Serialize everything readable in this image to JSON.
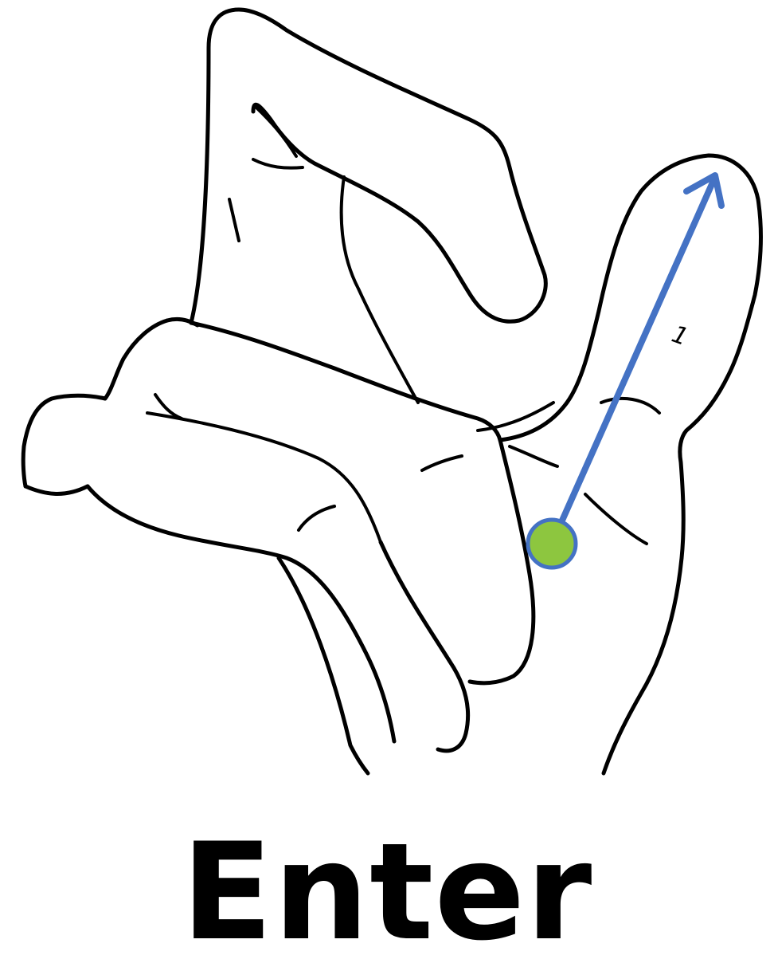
{
  "gesture": {
    "label": "Enter",
    "steps": [
      {
        "number": "1",
        "direction": "up-right"
      }
    ]
  },
  "colors": {
    "outline": "#000000",
    "arrow": "#4472C4",
    "start_dot_fill": "#8DC63F",
    "start_dot_stroke": "#4472C4",
    "background": "#ffffff"
  },
  "icons": {
    "hand": "hand-outline-icon",
    "arrow": "movement-arrow-icon",
    "start": "start-point-icon"
  }
}
